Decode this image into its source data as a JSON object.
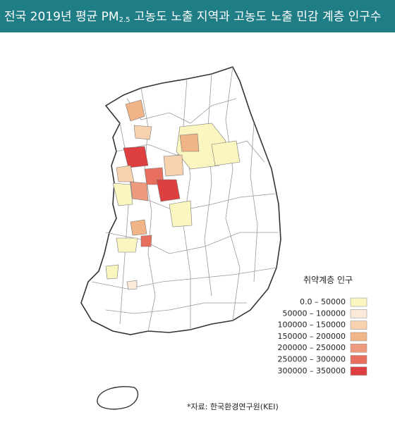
{
  "header": {
    "title_before": "전국 2019년 평균 PM",
    "title_sub": "2.5",
    "title_after": " 고농도 노출 지역과 고농도 노출 민감 계층 인구수"
  },
  "legend": {
    "title": "취약계층 인구",
    "entries": [
      {
        "label": "0.0 – 50000",
        "color": "#fbf6c0"
      },
      {
        "label": "50000 – 100000",
        "color": "#fbe9da"
      },
      {
        "label": "100000 – 150000",
        "color": "#f8d1ae"
      },
      {
        "label": "150000 – 200000",
        "color": "#f1b487"
      },
      {
        "label": "200000 – 250000",
        "color": "#ee9a7f"
      },
      {
        "label": "250000 – 300000",
        "color": "#e86f5d"
      },
      {
        "label": "300000 – 350000",
        "color": "#de3f40"
      }
    ]
  },
  "source": "*자료: 한국환경연구원(KEI)"
}
